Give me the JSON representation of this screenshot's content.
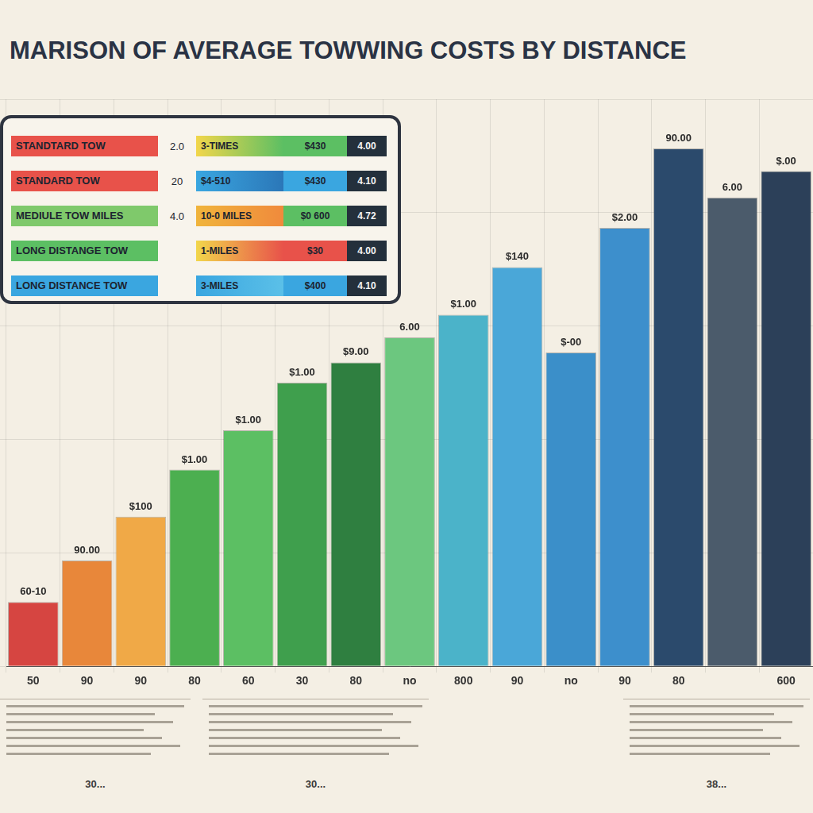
{
  "chart_data": {
    "type": "bar",
    "title": "MARISON OF AVERAGE TOWWING COSTS BY DISTANCE",
    "categories": [
      "50",
      "90",
      "90",
      "80",
      "60",
      "30",
      "80",
      "no",
      "800",
      "90",
      "no",
      "90",
      "80",
      null,
      "600"
    ],
    "values": [
      85,
      140,
      198,
      260,
      312,
      375,
      402,
      435,
      465,
      528,
      415,
      580,
      685,
      620,
      655
    ],
    "colors": [
      "#d64541",
      "#e8873a",
      "#f0a947",
      "#4caf50",
      "#5cbf63",
      "#3f9f4d",
      "#2f7f40",
      "#6cc77f",
      "#4bb3c9",
      "#4aa7d8",
      "#3b8fc9",
      "#3d8fcc",
      "#2b4a6c",
      "#4b5b6b",
      "#2c4059"
    ],
    "annotations": [
      "60-10",
      "90.00",
      "$100",
      "$1.00",
      "$1.00",
      "$1.00",
      "$9.00",
      "6.00",
      "$1.00",
      "$140",
      "$-00",
      "$2.00",
      "90.00",
      "6.00",
      "$.00"
    ],
    "legend_rows": [
      {
        "name": "STANDTARD TOW",
        "value": "2.0",
        "miles": "3-TIMES",
        "price": "$430",
        "rate": "4.00"
      },
      {
        "name": "STANDARD TOW",
        "value": "20",
        "miles": "$4-510",
        "price": "$430",
        "rate": "4.10"
      },
      {
        "name": "MEDIULE TOW MILES",
        "value": "4.0",
        "miles": "10-0 MILES",
        "price": "$0 600",
        "rate": "4.72"
      },
      {
        "name": "LONG DISTANGE TOW",
        "miles": "1-MILES",
        "price": "$30",
        "rate": "4.00"
      },
      {
        "name": "LONG DISTANCE TOW",
        "miles": "3-MILES",
        "price": "$400",
        "rate": "4.10"
      }
    ],
    "footer_notes": [
      "30...",
      "30...",
      "38..."
    ],
    "ylim": [
      0,
      750
    ],
    "yticks": [
      0,
      150,
      300,
      450,
      600,
      750
    ],
    "grid": true,
    "tick_labels": "x"
  }
}
